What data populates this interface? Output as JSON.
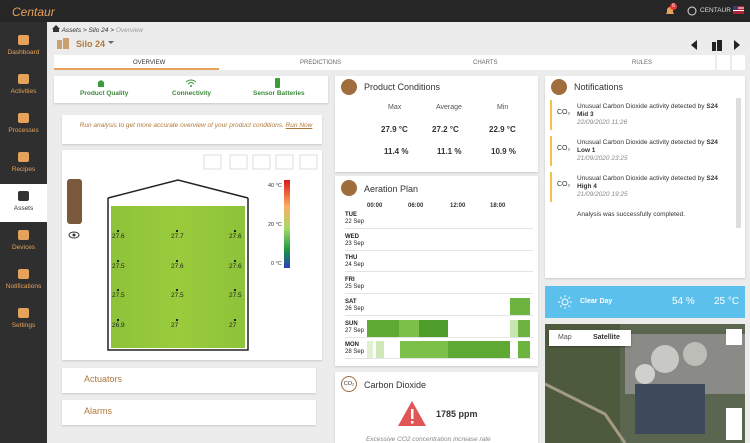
{
  "topbar": {
    "logo": "Centaur",
    "badge": "6",
    "user": "CENTAUR"
  },
  "sidebar": [
    "Dashboard",
    "Activities",
    "Processes",
    "Recipes",
    "Assets",
    "Devices",
    "Notifications",
    "Settings"
  ],
  "breadcrumb": [
    "Assets",
    "Silo 24",
    "Overview"
  ],
  "title": "Silo 24",
  "tabs": [
    "OVERVIEW",
    "PREDICTIONS",
    "CHARTS",
    "RULES"
  ],
  "status": [
    "Product Quality",
    "Connectivity",
    "Sensor Batteries"
  ],
  "info": {
    "text": "Run analysis to get more accurate overview of your product conditions.",
    "link": "Run Now"
  },
  "silo": {
    "scale": [
      "40 °C",
      "20 °C",
      "0 °C"
    ],
    "sensors": [
      [
        27.6,
        27.7,
        27.6
      ],
      [
        27.5,
        27.6,
        27.6
      ],
      [
        27.5,
        27.5,
        27.5
      ],
      [
        26.9,
        27,
        27
      ]
    ]
  },
  "actuators": "Actuators",
  "alarms": "Alarms",
  "product_conditions": {
    "title": "Product Conditions",
    "headers": [
      "Max",
      "Average",
      "Min"
    ],
    "rows": [
      [
        "27.9 °C",
        "27.2 °C",
        "22.9 °C"
      ],
      [
        "11.4 %",
        "11.1 %",
        "10.9 %"
      ]
    ]
  },
  "aeration_plan": {
    "title": "Aeration Plan",
    "times": [
      "00:00",
      "06:00",
      "12:00",
      "18:00"
    ],
    "days": [
      {
        "day": "TUE",
        "date": "22 Sep"
      },
      {
        "day": "WED",
        "date": "23 Sep"
      },
      {
        "day": "THU",
        "date": "24 Sep"
      },
      {
        "day": "FRI",
        "date": "25 Sep"
      },
      {
        "day": "SAT",
        "date": "26 Sep"
      },
      {
        "day": "SUN",
        "date": "27 Sep"
      },
      {
        "day": "MON",
        "date": "28 Sep"
      }
    ]
  },
  "carbon_dioxide": {
    "icon": "CO₂",
    "title": "Carbon Dioxide",
    "value": "1785 ppm",
    "message": "Excessive CO2 concentration increase rate"
  },
  "notifications": {
    "title": "Notifications",
    "items": [
      {
        "icon": "CO₂",
        "text": "Unusual Carbon Dioxide activity detected by",
        "source": "S24 Mid 3",
        "time": "22/09/2020 11:26"
      },
      {
        "icon": "CO₂",
        "text": "Unusual Carbon Dioxide activity detected by",
        "source": "S24 Low 1",
        "time": "21/09/2020 23:25"
      },
      {
        "icon": "CO₂",
        "text": "Unusual Carbon Dioxide activity detected by",
        "source": "S24 High 4",
        "time": "21/09/2020 19:25"
      },
      {
        "text": "Analysis was successfully completed."
      }
    ]
  },
  "weather": {
    "condition": "Clear Day",
    "humidity": "54 %",
    "temperature": "25 °C"
  },
  "map": {
    "buttons": [
      "Map",
      "Satellite"
    ]
  }
}
